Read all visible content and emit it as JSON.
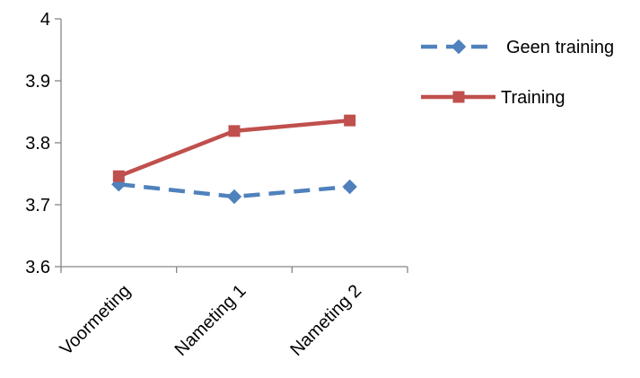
{
  "chart_data": {
    "type": "line",
    "categories": [
      "Voormeting",
      "Nameting 1",
      "Nameting 2"
    ],
    "series": [
      {
        "name": "Geen training",
        "values": [
          3.733,
          3.713,
          3.729
        ],
        "color": "#4F81BD",
        "line_style": "dashed",
        "marker": "diamond"
      },
      {
        "name": "Training",
        "values": [
          3.746,
          3.819,
          3.836
        ],
        "color": "#C0504D",
        "line_style": "solid",
        "marker": "square"
      }
    ],
    "yticks": [
      "3.6",
      "3.7",
      "3.8",
      "3.9",
      "4"
    ],
    "ylim": [
      3.6,
      4.0
    ],
    "grid": false,
    "legend_position": "right-top"
  }
}
